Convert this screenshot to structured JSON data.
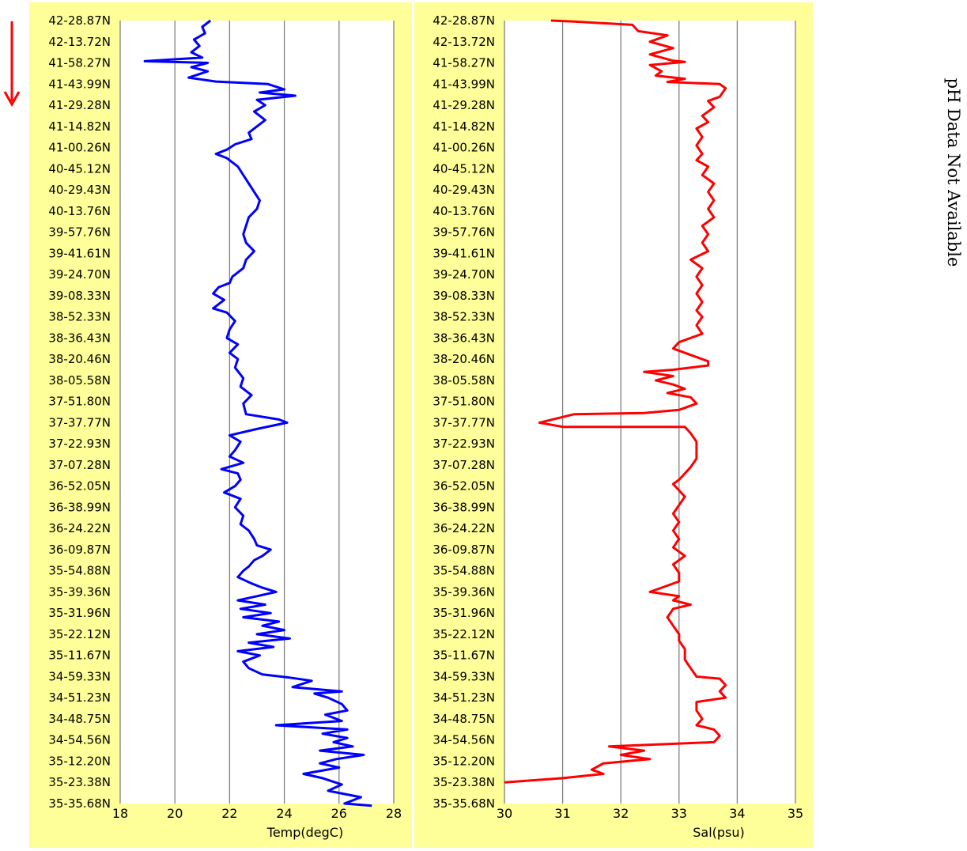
{
  "side_note": "pH Data Not Available",
  "direction_arrow": {
    "icon": "arrow-down-icon",
    "color": "#ff0000"
  },
  "colors": {
    "panel_bg": "#ffff99",
    "plot_bg": "#ffffff",
    "grid": "#808080",
    "temp_line": "#0000ff",
    "sal_line": "#ff0000"
  },
  "latitude_labels": [
    "42-28.87N",
    "42-13.72N",
    "41-58.27N",
    "41-43.99N",
    "41-29.28N",
    "41-14.82N",
    "41-00.26N",
    "40-45.12N",
    "40-29.43N",
    "40-13.76N",
    "39-57.76N",
    "39-41.61N",
    "39-24.70N",
    "39-08.33N",
    "38-52.33N",
    "38-36.43N",
    "38-20.46N",
    "38-05.58N",
    "37-51.80N",
    "37-37.77N",
    "37-22.93N",
    "37-07.28N",
    "36-52.05N",
    "36-38.99N",
    "36-24.22N",
    "36-09.87N",
    "35-54.88N",
    "35-39.36N",
    "35-31.96N",
    "35-22.12N",
    "35-11.67N",
    "34-59.33N",
    "34-51.23N",
    "34-48.75N",
    "34-54.56N",
    "35-12.20N",
    "35-23.38N",
    "35-35.68N"
  ],
  "chart_data": [
    {
      "type": "line",
      "xlabel": "Temp(degC)",
      "xlim": [
        18,
        28
      ],
      "xticks": [
        18,
        20,
        22,
        24,
        26,
        28
      ],
      "grid": true,
      "y_categories_ref": "latitude_labels",
      "series": [
        {
          "color": "#0000ff",
          "points": [
            [
              21.3,
              0
            ],
            [
              21.0,
              0.3
            ],
            [
              21.1,
              0.6
            ],
            [
              20.7,
              0.9
            ],
            [
              20.9,
              1.2
            ],
            [
              20.6,
              1.5
            ],
            [
              21.0,
              1.75
            ],
            [
              18.9,
              1.92
            ],
            [
              21.2,
              2.0
            ],
            [
              20.6,
              2.2
            ],
            [
              21.2,
              2.4
            ],
            [
              20.5,
              2.7
            ],
            [
              21.5,
              2.88
            ],
            [
              23.4,
              3.0
            ],
            [
              24.0,
              3.25
            ],
            [
              23.1,
              3.4
            ],
            [
              24.4,
              3.55
            ],
            [
              23.0,
              3.75
            ],
            [
              23.3,
              4.0
            ],
            [
              22.9,
              4.3
            ],
            [
              23.3,
              4.7
            ],
            [
              23.0,
              5.0
            ],
            [
              22.7,
              5.3
            ],
            [
              22.8,
              5.6
            ],
            [
              22.2,
              5.85
            ],
            [
              21.9,
              6.1
            ],
            [
              21.5,
              6.3
            ],
            [
              21.9,
              6.5
            ],
            [
              22.3,
              6.9
            ],
            [
              22.5,
              7.3
            ],
            [
              22.7,
              7.7
            ],
            [
              22.9,
              8.1
            ],
            [
              23.1,
              8.5
            ],
            [
              23.0,
              8.9
            ],
            [
              22.7,
              9.3
            ],
            [
              22.6,
              9.7
            ],
            [
              22.5,
              10.1
            ],
            [
              22.6,
              10.5
            ],
            [
              22.9,
              10.9
            ],
            [
              22.6,
              11.3
            ],
            [
              22.5,
              11.7
            ],
            [
              22.1,
              12.1
            ],
            [
              22.0,
              12.4
            ],
            [
              21.6,
              12.6
            ],
            [
              21.4,
              12.9
            ],
            [
              21.8,
              13.2
            ],
            [
              21.4,
              13.6
            ],
            [
              21.9,
              13.8
            ],
            [
              22.2,
              14.2
            ],
            [
              22.0,
              14.6
            ],
            [
              21.9,
              15.0
            ],
            [
              22.3,
              15.3
            ],
            [
              22.0,
              15.7
            ],
            [
              22.3,
              16.0
            ],
            [
              22.2,
              16.4
            ],
            [
              22.5,
              16.9
            ],
            [
              22.4,
              17.3
            ],
            [
              22.8,
              17.7
            ],
            [
              22.5,
              18.1
            ],
            [
              22.6,
              18.6
            ],
            [
              23.8,
              18.85
            ],
            [
              24.1,
              19.0
            ],
            [
              23.0,
              19.3
            ],
            [
              22.0,
              19.6
            ],
            [
              22.4,
              19.9
            ],
            [
              22.2,
              20.3
            ],
            [
              22.0,
              20.6
            ],
            [
              22.5,
              20.9
            ],
            [
              21.7,
              21.2
            ],
            [
              22.3,
              21.4
            ],
            [
              22.4,
              21.7
            ],
            [
              22.2,
              22.0
            ],
            [
              21.8,
              22.3
            ],
            [
              22.4,
              22.6
            ],
            [
              22.2,
              23.0
            ],
            [
              22.5,
              23.4
            ],
            [
              22.4,
              23.8
            ],
            [
              22.7,
              24.1
            ],
            [
              22.9,
              24.5
            ],
            [
              23.0,
              24.8
            ],
            [
              23.5,
              25.0
            ],
            [
              23.2,
              25.3
            ],
            [
              22.9,
              25.5
            ],
            [
              22.7,
              25.8
            ],
            [
              22.5,
              26.0
            ],
            [
              22.3,
              26.3
            ],
            [
              22.8,
              26.6
            ],
            [
              23.2,
              26.8
            ],
            [
              23.7,
              27.0
            ],
            [
              23.0,
              27.2
            ],
            [
              22.3,
              27.4
            ],
            [
              23.3,
              27.6
            ],
            [
              22.4,
              27.8
            ],
            [
              23.5,
              28.0
            ],
            [
              22.5,
              28.2
            ],
            [
              23.8,
              28.4
            ],
            [
              23.2,
              28.6
            ],
            [
              24.0,
              28.8
            ],
            [
              23.0,
              29.0
            ],
            [
              24.2,
              29.2
            ],
            [
              22.7,
              29.4
            ],
            [
              23.6,
              29.6
            ],
            [
              22.3,
              29.8
            ],
            [
              23.1,
              30.0
            ],
            [
              22.5,
              30.3
            ],
            [
              22.7,
              30.6
            ],
            [
              23.2,
              30.9
            ],
            [
              24.2,
              31.05
            ],
            [
              25.0,
              31.2
            ],
            [
              24.3,
              31.5
            ],
            [
              26.1,
              31.7
            ],
            [
              25.1,
              31.8
            ],
            [
              25.6,
              32.0
            ],
            [
              26.1,
              32.3
            ],
            [
              26.3,
              32.6
            ],
            [
              25.5,
              32.8
            ],
            [
              26.1,
              33.1
            ],
            [
              23.7,
              33.3
            ],
            [
              26.3,
              33.5
            ],
            [
              25.4,
              33.7
            ],
            [
              26.3,
              33.9
            ],
            [
              25.8,
              34.1
            ],
            [
              26.5,
              34.3
            ],
            [
              25.3,
              34.5
            ],
            [
              26.9,
              34.7
            ],
            [
              25.9,
              34.9
            ],
            [
              25.3,
              35.1
            ],
            [
              26.0,
              35.3
            ],
            [
              24.7,
              35.6
            ],
            [
              25.4,
              35.8
            ],
            [
              26.1,
              36.1
            ],
            [
              25.6,
              36.4
            ],
            [
              26.8,
              36.7
            ],
            [
              26.2,
              37.0
            ],
            [
              27.2,
              37.1
            ]
          ]
        }
      ]
    },
    {
      "type": "line",
      "xlabel": "Sal(psu)",
      "xlim": [
        30,
        35
      ],
      "xticks": [
        30,
        31,
        32,
        33,
        34,
        35
      ],
      "grid": true,
      "y_categories_ref": "latitude_labels",
      "series": [
        {
          "color": "#ff0000",
          "points": [
            [
              30.8,
              0
            ],
            [
              31.2,
              0.05
            ],
            [
              32.2,
              0.2
            ],
            [
              32.3,
              0.5
            ],
            [
              32.8,
              0.7
            ],
            [
              32.5,
              1.0
            ],
            [
              32.9,
              1.3
            ],
            [
              32.5,
              1.6
            ],
            [
              32.9,
              1.9
            ],
            [
              33.1,
              1.95
            ],
            [
              32.5,
              2.1
            ],
            [
              32.7,
              2.4
            ],
            [
              32.6,
              2.6
            ],
            [
              33.1,
              2.75
            ],
            [
              32.8,
              2.9
            ],
            [
              33.7,
              3.0
            ],
            [
              33.8,
              3.2
            ],
            [
              33.7,
              3.6
            ],
            [
              33.5,
              3.8
            ],
            [
              33.6,
              4.1
            ],
            [
              33.4,
              4.5
            ],
            [
              33.5,
              4.8
            ],
            [
              33.3,
              5.1
            ],
            [
              33.4,
              5.5
            ],
            [
              33.3,
              5.9
            ],
            [
              33.4,
              6.3
            ],
            [
              33.3,
              6.6
            ],
            [
              33.5,
              6.9
            ],
            [
              33.4,
              7.3
            ],
            [
              33.6,
              7.7
            ],
            [
              33.5,
              8.1
            ],
            [
              33.6,
              8.5
            ],
            [
              33.5,
              8.9
            ],
            [
              33.6,
              9.3
            ],
            [
              33.4,
              9.7
            ],
            [
              33.5,
              10.1
            ],
            [
              33.4,
              10.5
            ],
            [
              33.5,
              10.9
            ],
            [
              33.2,
              11.3
            ],
            [
              33.4,
              11.7
            ],
            [
              33.3,
              12.1
            ],
            [
              33.4,
              12.5
            ],
            [
              33.3,
              12.9
            ],
            [
              33.4,
              13.3
            ],
            [
              33.3,
              13.7
            ],
            [
              33.4,
              14.0
            ],
            [
              33.3,
              14.4
            ],
            [
              33.4,
              14.8
            ],
            [
              33.0,
              15.2
            ],
            [
              32.9,
              15.5
            ],
            [
              33.2,
              15.8
            ],
            [
              33.5,
              16.1
            ],
            [
              33.5,
              16.3
            ],
            [
              32.9,
              16.5
            ],
            [
              32.4,
              16.6
            ],
            [
              32.9,
              16.8
            ],
            [
              32.6,
              17.0
            ],
            [
              32.9,
              17.2
            ],
            [
              33.1,
              17.4
            ],
            [
              32.8,
              17.6
            ],
            [
              33.2,
              17.8
            ],
            [
              33.3,
              18.1
            ],
            [
              33.0,
              18.4
            ],
            [
              32.4,
              18.55
            ],
            [
              31.2,
              18.6
            ],
            [
              30.6,
              19.0
            ],
            [
              31.0,
              19.2
            ],
            [
              33.1,
              19.2
            ],
            [
              33.2,
              19.5
            ],
            [
              33.3,
              19.9
            ],
            [
              33.3,
              20.3
            ],
            [
              33.3,
              20.7
            ],
            [
              33.2,
              21.1
            ],
            [
              33.1,
              21.4
            ],
            [
              33.0,
              21.7
            ],
            [
              32.9,
              21.9
            ],
            [
              33.0,
              22.2
            ],
            [
              33.1,
              22.5
            ],
            [
              33.0,
              22.9
            ],
            [
              32.9,
              23.3
            ],
            [
              33.0,
              23.7
            ],
            [
              32.9,
              24.1
            ],
            [
              33.0,
              24.5
            ],
            [
              32.9,
              24.9
            ],
            [
              33.1,
              25.3
            ],
            [
              32.9,
              25.7
            ],
            [
              33.0,
              26.1
            ],
            [
              33.0,
              26.5
            ],
            [
              32.7,
              26.8
            ],
            [
              32.5,
              27.0
            ],
            [
              33.0,
              27.2
            ],
            [
              32.9,
              27.4
            ],
            [
              33.2,
              27.6
            ],
            [
              32.9,
              27.8
            ],
            [
              32.8,
              28.2
            ],
            [
              32.9,
              28.6
            ],
            [
              33.0,
              29.0
            ],
            [
              33.0,
              29.3
            ],
            [
              33.1,
              29.7
            ],
            [
              33.1,
              30.2
            ],
            [
              33.2,
              30.6
            ],
            [
              33.3,
              31.0
            ],
            [
              33.7,
              31.1
            ],
            [
              33.8,
              31.4
            ],
            [
              33.7,
              31.7
            ],
            [
              33.8,
              32.0
            ],
            [
              33.3,
              32.2
            ],
            [
              33.3,
              32.6
            ],
            [
              33.4,
              33.0
            ],
            [
              33.3,
              33.3
            ],
            [
              33.6,
              33.5
            ],
            [
              33.7,
              33.8
            ],
            [
              33.6,
              34.1
            ],
            [
              31.8,
              34.3
            ],
            [
              32.4,
              34.5
            ],
            [
              32.0,
              34.7
            ],
            [
              32.5,
              34.9
            ],
            [
              31.7,
              35.1
            ],
            [
              31.5,
              35.4
            ],
            [
              31.7,
              35.6
            ],
            [
              31.0,
              35.8
            ],
            [
              30.0,
              36.0
            ]
          ]
        }
      ]
    }
  ]
}
